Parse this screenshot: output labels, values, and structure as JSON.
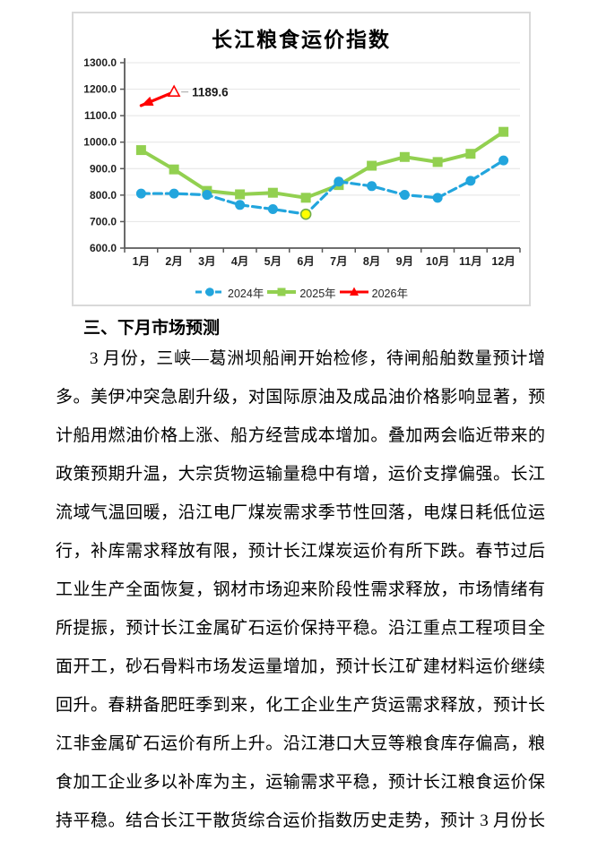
{
  "chart": {
    "title": "长江粮食运价指数",
    "colors": {
      "grid": "#e4e4e4",
      "axis": "#595959",
      "tick_label": "#1f1f1f",
      "annotation_text": "#1a1a1a",
      "leader": "#b0b0b0",
      "border": "#d9d9d9"
    }
  },
  "chart_data": {
    "type": "line",
    "title": "长江粮食运价指数",
    "categories": [
      "1月",
      "2月",
      "3月",
      "4月",
      "5月",
      "6月",
      "7月",
      "8月",
      "9月",
      "10月",
      "11月",
      "12月"
    ],
    "y_ticks": [
      "600.0",
      "700.0",
      "800.0",
      "900.0",
      "1000.0",
      "1100.0",
      "1200.0",
      "1300.0"
    ],
    "ylim": [
      600,
      1300
    ],
    "ytick_step": 100,
    "grid": true,
    "legend_position": "bottom",
    "series": [
      {
        "name": "2024年",
        "color": "#22a5dd",
        "style": "dashed",
        "marker": "circle",
        "values": [
          806,
          806,
          801,
          763,
          747,
          728,
          851,
          834,
          801,
          790,
          854,
          931
        ]
      },
      {
        "name": "2025年",
        "color": "#92d050",
        "style": "solid",
        "marker": "square",
        "values": [
          970,
          897,
          816,
          803,
          809,
          790,
          838,
          911,
          944,
          925,
          956,
          1039
        ]
      },
      {
        "name": "2026年",
        "color": "#ff0000",
        "style": "solid",
        "marker": "triangle",
        "values": [
          1138,
          1189.6,
          null,
          null,
          null,
          null,
          null,
          null,
          null,
          null,
          null,
          null
        ]
      }
    ],
    "annotation": {
      "series_index": 2,
      "point_index": 1,
      "text": "1189.6"
    },
    "highlight_point": {
      "series_index": 0,
      "point_index": 5,
      "fill": "#ffff00",
      "stroke": "#70ad47"
    },
    "arrow_end": {
      "series_index": 2,
      "point_index": 0
    }
  },
  "document": {
    "heading": "三、下月市场预测",
    "paragraph_lines": [
      {
        "text": "3 月份，三峡—葛洲坝船闸开始检修，待闸船舶数量预计增",
        "indent": true
      },
      {
        "text": "多。美伊冲突急剧升级，对国际原油及成品油价格影响显著，预",
        "indent": false
      },
      {
        "text": "计船用燃油价格上涨、船方经营成本增加。叠加两会临近带来的",
        "indent": false
      },
      {
        "text": "政策预期升温，大宗货物运输量稳中有增，运价支撑偏强。长江",
        "indent": false
      },
      {
        "text": "流域气温回暖，沿江电厂煤炭需求季节性回落，电煤日耗低位运",
        "indent": false
      },
      {
        "text": "行，补库需求释放有限，预计长江煤炭运价有所下跌。春节过后",
        "indent": false
      },
      {
        "text": "工业生产全面恢复，钢材市场迎来阶段性需求释放，市场情绪有",
        "indent": false
      },
      {
        "text": "所提振，预计长江金属矿石运价保持平稳。沿江重点工程项目全",
        "indent": false
      },
      {
        "text": "面开工，砂石骨料市场发运量增加，预计长江矿建材料运价继续",
        "indent": false
      },
      {
        "text": "回升。春耕备肥旺季到来，化工企业生产货运需求释放，预计长",
        "indent": false
      },
      {
        "text": "江非金属矿石运价有所上升。沿江港口大豆等粮食库存偏高，粮",
        "indent": false
      },
      {
        "text": "食加工企业多以补库为主，运输需求平稳，预计长江粮食运价保",
        "indent": false
      },
      {
        "text": "持平稳。结合长江干散货综合运价指数历史走势，预计 3 月份长",
        "indent": false
      }
    ]
  }
}
